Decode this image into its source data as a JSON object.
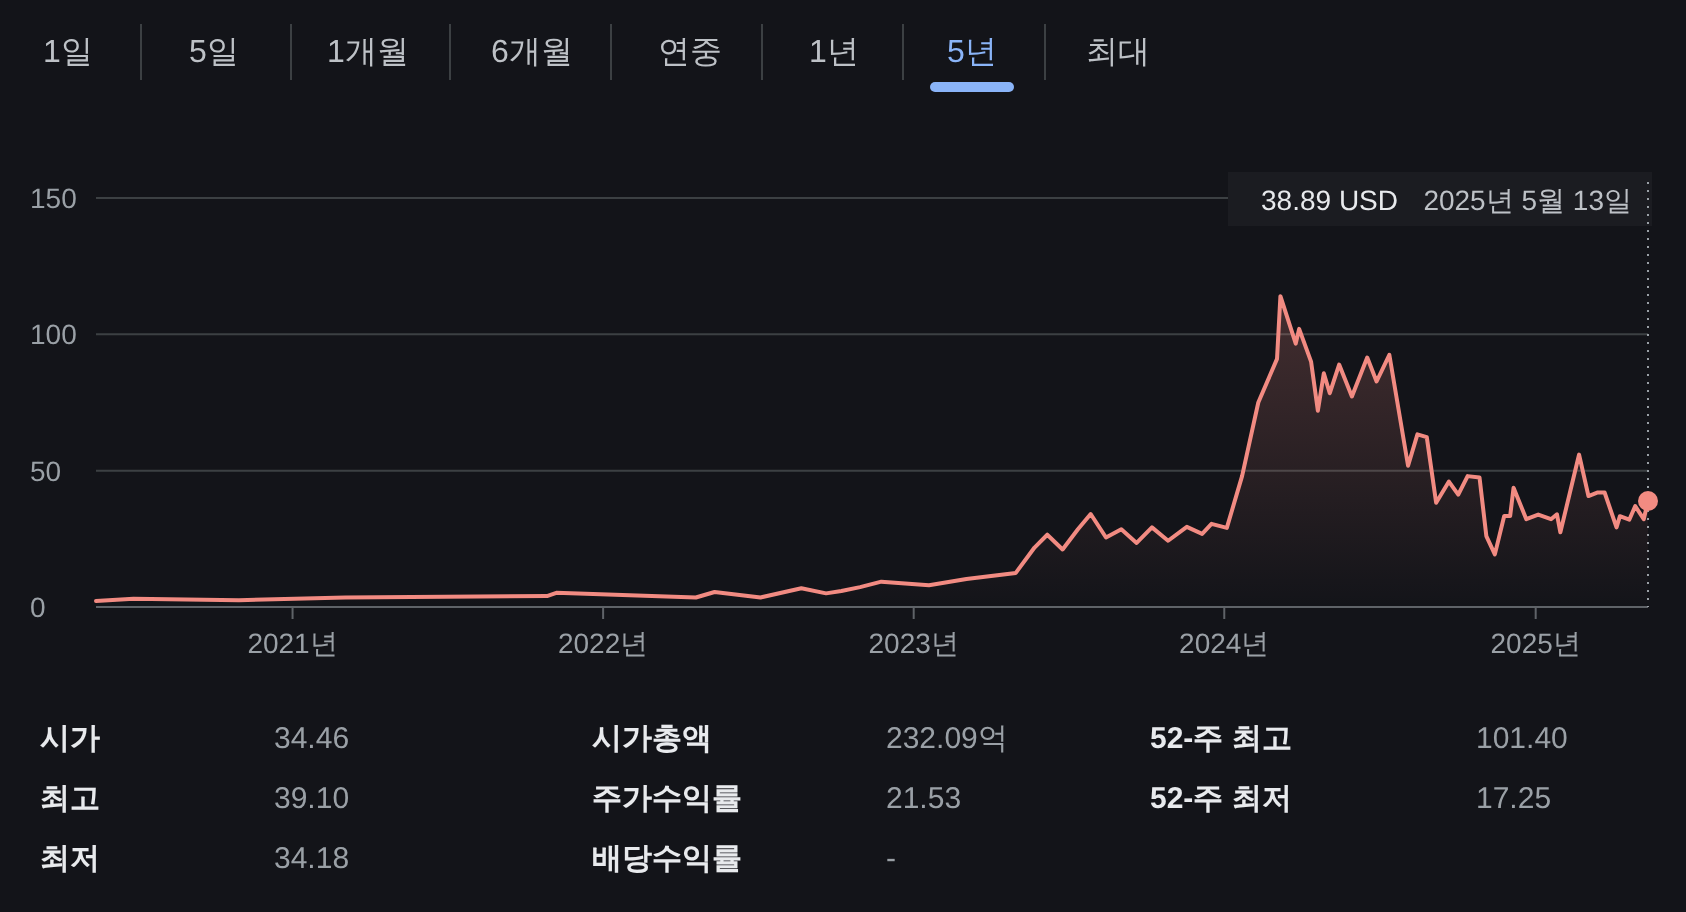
{
  "chart_data": {
    "type": "area",
    "color": "#f28b82",
    "x": [
      "2020-05-15",
      "2020-06-28",
      "2020-10-30",
      "2021-03-04",
      "2021-10-27",
      "2021-11-07",
      "2022-04-20",
      "2022-05-12",
      "2022-07-05",
      "2022-08-22",
      "2022-09-20",
      "2022-10-08",
      "2022-10-30",
      "2022-11-24",
      "2023-01-19",
      "2023-03-04",
      "2023-05-01",
      "2023-05-23",
      "2023-06-07",
      "2023-06-25",
      "2023-07-13",
      "2023-07-28",
      "2023-08-15",
      "2023-09-02",
      "2023-09-20",
      "2023-10-08",
      "2023-10-27",
      "2023-11-18",
      "2023-12-06",
      "2023-12-17",
      "2024-01-04",
      "2024-01-22",
      "2024-02-10",
      "2024-03-03",
      "2024-03-07",
      "2024-03-25",
      "2024-03-29",
      "2024-04-12",
      "2024-04-20",
      "2024-04-27",
      "2024-05-04",
      "2024-05-15",
      "2024-05-30",
      "2024-06-17",
      "2024-06-28",
      "2024-07-13",
      "2024-08-04",
      "2024-08-15",
      "2024-08-26",
      "2024-09-06",
      "2024-09-21",
      "2024-10-02",
      "2024-10-13",
      "2024-10-27",
      "2024-11-04",
      "2024-11-14",
      "2024-11-25",
      "2024-12-02",
      "2024-12-06",
      "2024-12-21",
      "2025-01-04",
      "2025-01-19",
      "2025-01-26",
      "2025-01-30",
      "2025-02-21",
      "2025-03-04",
      "2025-03-15",
      "2025-03-23",
      "2025-04-06",
      "2025-04-10",
      "2025-04-21",
      "2025-04-28",
      "2025-05-08",
      "2025-05-13"
    ],
    "values": [
      2.2,
      3,
      2.5,
      3.5,
      4,
      5.2,
      3.5,
      5.5,
      3.5,
      6.9,
      5,
      5.9,
      7.3,
      9.3,
      8,
      10.3,
      12.5,
      21.8,
      26.5,
      21.1,
      28.5,
      34.1,
      25.5,
      28.5,
      23.5,
      29.2,
      24.3,
      29.4,
      26.8,
      30.5,
      29,
      48.1,
      75,
      91,
      114,
      96.6,
      102,
      90,
      72,
      85.7,
      78.4,
      88.9,
      77.2,
      91.5,
      82.7,
      92.5,
      51.8,
      63.3,
      62.3,
      38.2,
      46,
      41.2,
      48,
      47.5,
      26,
      19.3,
      33.4,
      33.4,
      43.7,
      32.2,
      33.9,
      32.2,
      34,
      27.4,
      55.9,
      40.7,
      42,
      42,
      29.2,
      33.3,
      32,
      37,
      32.2,
      38.89
    ],
    "xlim": [
      "2020-05-15",
      "2025-05-13"
    ],
    "xticks": [
      {
        "value": "2021-01-01",
        "label": "2021년"
      },
      {
        "value": "2022-01-01",
        "label": "2022년"
      },
      {
        "value": "2023-01-01",
        "label": "2023년"
      },
      {
        "value": "2024-01-01",
        "label": "2024년"
      },
      {
        "value": "2025-01-01",
        "label": "2025년"
      }
    ],
    "ylim": [
      0,
      150
    ],
    "yticks": [
      0,
      50,
      100,
      150
    ],
    "grid": "y",
    "ref_lines": [
      {
        "axis": "x",
        "value": "2025-05-13",
        "label": "2025년 5월 13일",
        "line_style": "dotted",
        "color": "#9aa0a6"
      }
    ],
    "annotations": [
      "38.89 USD",
      "1일",
      "5일",
      "1개월",
      "6개월",
      "연중",
      "1년",
      "5년",
      "최대",
      "시가",
      "34.46",
      "최고",
      "39.10",
      "최저",
      "34.18",
      "시가총액",
      "232.09억",
      "주가수익률",
      "21.53",
      "배당수익률",
      "-",
      "52-주 최고",
      "101.40",
      "52-주 최저",
      "17.25"
    ]
  }
}
